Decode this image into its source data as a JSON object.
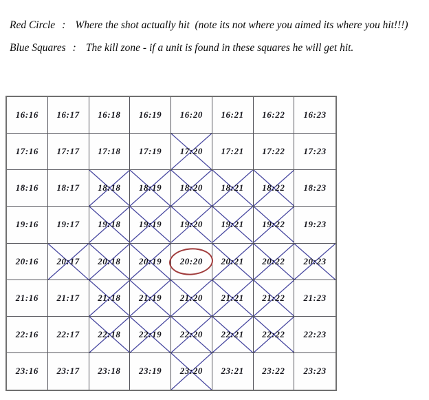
{
  "legend": [
    {
      "term": "Red Circle",
      "separator": ":",
      "description": "Where the shot actually hit  (note its not where you aimed its where you hit!!!)"
    },
    {
      "term": "Blue Squares",
      "separator": ":",
      "description": "The kill zone - if a unit is found in these squares he will get hit."
    }
  ],
  "grid": {
    "rows": [
      16,
      17,
      18,
      19,
      20,
      21,
      22,
      23
    ],
    "cols": [
      16,
      17,
      18,
      19,
      20,
      21,
      22,
      23
    ],
    "cell_labels": [
      [
        "16:16",
        "16:17",
        "16:18",
        "16:19",
        "16:20",
        "16:21",
        "16:22",
        "16:23"
      ],
      [
        "17:16",
        "17:17",
        "17:18",
        "17:19",
        "17:20",
        "17:21",
        "17:22",
        "17:23"
      ],
      [
        "18:16",
        "18:17",
        "18:18",
        "18:19",
        "18:20",
        "18:21",
        "18:22",
        "18:23"
      ],
      [
        "19:16",
        "19:17",
        "19:18",
        "19:19",
        "19:20",
        "19:21",
        "19:22",
        "19:23"
      ],
      [
        "20:16",
        "20:17",
        "20:18",
        "20:19",
        "20:20",
        "20:21",
        "20:22",
        "20:23"
      ],
      [
        "21:16",
        "21:17",
        "21:18",
        "21:19",
        "21:20",
        "21:21",
        "21:22",
        "21:23"
      ],
      [
        "22:16",
        "22:17",
        "22:18",
        "22:19",
        "22:20",
        "22:21",
        "22:22",
        "22:23"
      ],
      [
        "23:16",
        "23:17",
        "23:18",
        "23:19",
        "23:20",
        "23:21",
        "23:22",
        "23:23"
      ]
    ],
    "kill_zone_cells": [
      "17:20",
      "18:18",
      "18:19",
      "18:20",
      "18:21",
      "18:22",
      "19:18",
      "19:19",
      "19:20",
      "19:21",
      "19:22",
      "20:17",
      "20:18",
      "20:19",
      "20:21",
      "20:22",
      "20:23",
      "21:18",
      "21:19",
      "21:20",
      "21:21",
      "21:22",
      "22:18",
      "22:19",
      "22:20",
      "22:21",
      "22:22",
      "23:20"
    ],
    "hit_cell": "20:20"
  },
  "colors": {
    "kill_zone_line": "#4848a0",
    "hit_circle": "#a03c3c",
    "grid_line": "#55555c",
    "grid_border": "#707070",
    "cell_text": "#15151c",
    "legend_text": "#0c0c0c"
  }
}
